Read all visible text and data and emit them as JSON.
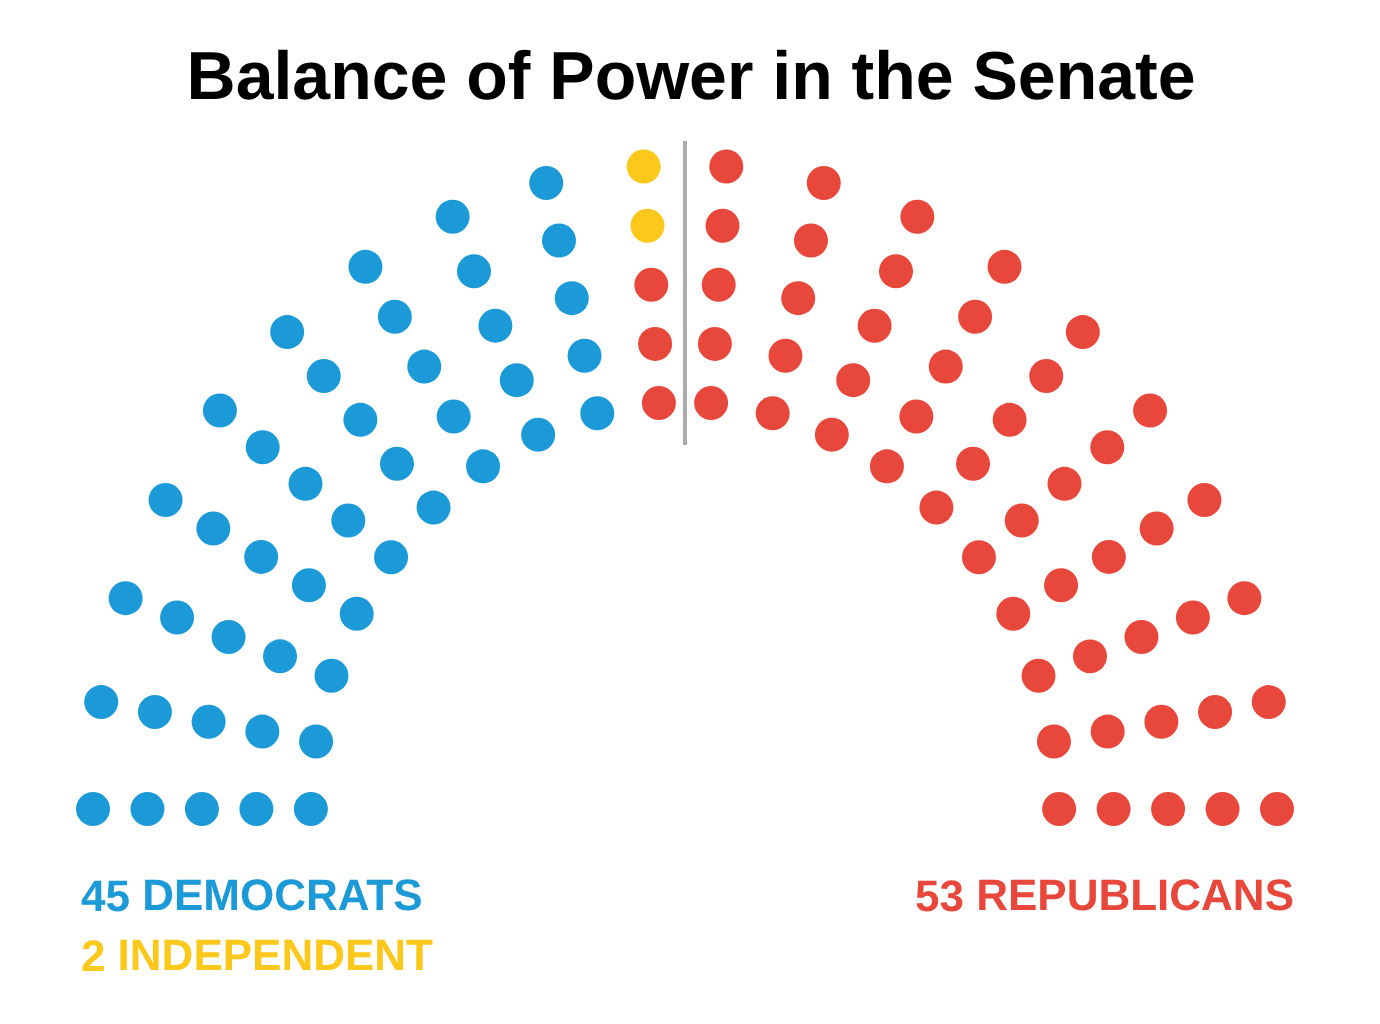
{
  "chart_data": {
    "type": "other",
    "title": "Balance of Power in the Senate",
    "categories": [
      "DEMOCRATS",
      "INDEPENDENT",
      "REPUBLICANS"
    ],
    "values": [
      45,
      2,
      53
    ],
    "colors": [
      "#1b9ad7",
      "#fcc81c",
      "#e8473b"
    ],
    "data_labels": true
  }
}
